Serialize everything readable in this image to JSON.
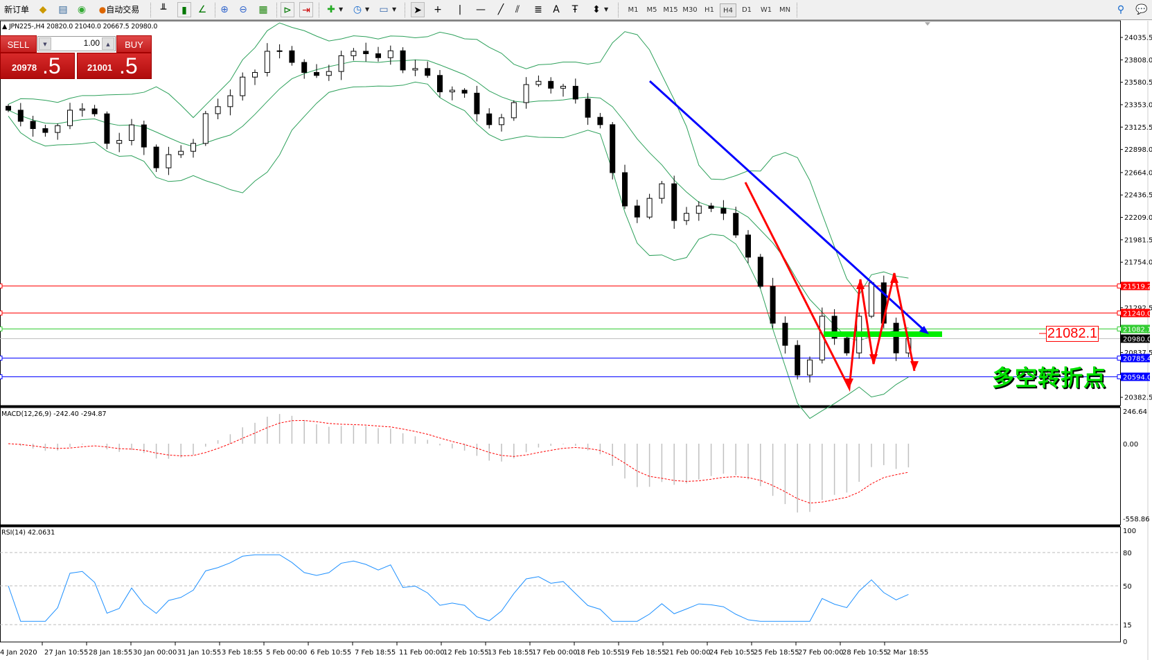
{
  "toolbar": {
    "new_order": "新订单",
    "auto_trading": "自动交易",
    "timeframes": [
      "M1",
      "M5",
      "M15",
      "M30",
      "H1",
      "H4",
      "D1",
      "W1",
      "MN"
    ],
    "selected_timeframe": "H4",
    "tools": [
      "bar-chart-icon",
      "candlestick-icon",
      "line-chart-icon",
      "zoom-in-icon",
      "zoom-out-icon",
      "tile-windows-icon",
      "autoscroll-icon",
      "chart-shift-icon",
      "indicators-icon",
      "periods-icon",
      "templates-icon",
      "cursor-icon",
      "crosshair-icon",
      "vertical-line-icon",
      "horizontal-line-icon",
      "trendline-icon",
      "equidistant-channel-icon",
      "fibonacci-icon",
      "text-icon",
      "text-label-icon",
      "arrows-icon"
    ],
    "text_tool": "A"
  },
  "chart_header": {
    "arrow": "▲",
    "text": "JPN225-,H4  20820.0 21040.0 20667.5 20980.0"
  },
  "trade_panel": {
    "sell": "SELL",
    "buy": "BUY",
    "lot": "1.00",
    "bid_main": "20978",
    "bid_frac": ".5",
    "ask_main": "21001",
    "ask_frac": ".5"
  },
  "chart_data": {
    "type": "candlestick",
    "symbol": "JPN225-",
    "timeframe": "H4",
    "closes": [
      23297,
      23184,
      23110,
      23071,
      23140,
      23297,
      23310,
      23260,
      22960,
      22990,
      23148,
      22923,
      22712,
      22846,
      22880,
      22960,
      23262,
      23333,
      23444,
      23633,
      23680,
      23895,
      23900,
      23782,
      23680,
      23650,
      23690,
      23850,
      23895,
      23870,
      23830,
      23900,
      23705,
      23720,
      23650,
      23483,
      23500,
      23470,
      23260,
      23150,
      23220,
      23374,
      23557,
      23590,
      23520,
      23540,
      23410,
      23225,
      23150,
      22663,
      22325,
      22212,
      22402,
      22550,
      22177,
      22250,
      22325,
      22300,
      22250,
      22030,
      21805,
      21509,
      21135,
      20910,
      20608,
      20762,
      21206,
      20982,
      20833,
      21206,
      21545,
      21135,
      20833,
      20980
    ],
    "y_axis_ticks": [
      "24035.5",
      "23808.0",
      "23580.5",
      "23353.0",
      "23125.5",
      "22898.0",
      "22664.0",
      "22436.5",
      "22209.0",
      "21981.5",
      "21754.0",
      "21292.5",
      "20837.5",
      "20382.5"
    ],
    "x_axis_ticks": [
      "4 Jan 2020",
      "27 Jan 10:55",
      "28 Jan 18:55",
      "30 Jan 00:00",
      "31 Jan 10:55",
      "3 Feb 18:55",
      "5 Feb 00:00",
      "6 Feb 10:55",
      "7 Feb 18:55",
      "11 Feb 00:00",
      "12 Feb 10:55",
      "13 Feb 18:55",
      "17 Feb 00:00",
      "18 Feb 10:55",
      "19 Feb 18:55",
      "21 Feb 00:00",
      "24 Feb 10:55",
      "25 Feb 18:55",
      "27 Feb 00:00",
      "28 Feb 10:55",
      "2 Mar 18:55"
    ],
    "levels": [
      {
        "price": 21519.2,
        "label": "21519.2",
        "color": "#ff0000"
      },
      {
        "price": 21240.0,
        "label": "21240.0",
        "color": "#ff0000"
      },
      {
        "price": 21082.1,
        "label": "21082.1",
        "color": "#33cc33"
      },
      {
        "price": 20980.0,
        "label": "20980.0",
        "color": "#000000",
        "line": "#c0c0c0"
      },
      {
        "price": 20785.4,
        "label": "20785.4",
        "color": "#0000ff"
      },
      {
        "price": 20594.0,
        "label": "20594.0",
        "color": "#0000ff"
      }
    ],
    "indicators": {
      "bollinger_color": "#2ca05a",
      "bull_color": "#ffffff",
      "bear_color": "#000000"
    }
  },
  "annotations": {
    "price_label": "21082.1",
    "text": "多空转折点",
    "colors": {
      "trend": "#0000ff",
      "zigzag": "#ff0000",
      "zone": "#00ee00"
    }
  },
  "macd": {
    "label": "MACD(12,26,9) -242.40 -294.87",
    "ticks": [
      "246.64",
      "0.00",
      "-558.86"
    ],
    "hist_color": "#c0c0c0",
    "signal_color": "#ff0000"
  },
  "rsi": {
    "label": "RSI(14) 42.0631",
    "ticks": [
      "100",
      "80",
      "50",
      "15",
      "0"
    ],
    "color": "#1e90ff"
  }
}
